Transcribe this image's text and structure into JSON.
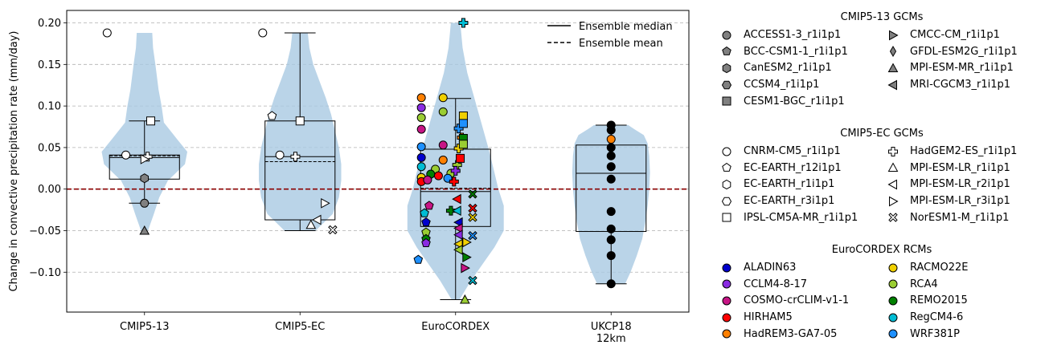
{
  "chart_data": {
    "type": "violin-box-scatter",
    "ylabel": "Change in convective precipitation rate (mm/day)",
    "xlabel": "",
    "ylim": [
      -0.148,
      0.215
    ],
    "yticks": [
      -0.1,
      -0.05,
      0.0,
      0.05,
      0.1,
      0.15,
      0.2
    ],
    "ytick_labels": [
      "−0.10",
      "−0.05",
      "0.00",
      "0.05",
      "0.10",
      "0.15",
      "0.20"
    ],
    "grid": "horizontal dashed",
    "zero_line_color": "#8b0000",
    "violin_color": "#a9c9e2",
    "groups": [
      {
        "name": "CMIP5-13",
        "tick_label": [
          "CMIP5-13"
        ],
        "pos": 1,
        "violin": {
          "min": -0.05,
          "max": 0.188,
          "shape": [
            [
              -0.05,
              0.045
            ],
            [
              -0.03,
              0.12
            ],
            [
              -0.01,
              0.19
            ],
            [
              0.01,
              0.3
            ],
            [
              0.03,
              0.52
            ],
            [
              0.045,
              0.55
            ],
            [
              0.06,
              0.42
            ],
            [
              0.08,
              0.25
            ],
            [
              0.1,
              0.22
            ],
            [
              0.12,
              0.18
            ],
            [
              0.15,
              0.14
            ],
            [
              0.17,
              0.11
            ],
            [
              0.188,
              0.1
            ]
          ]
        },
        "box": {
          "q1": 0.012,
          "median": 0.038,
          "mean": 0.04,
          "q3": 0.041,
          "whislo": -0.017,
          "whishi": 0.082
        }
      },
      {
        "name": "CMIP5-EC",
        "tick_label": [
          "CMIP5-EC"
        ],
        "pos": 2,
        "violin": {
          "min": -0.05,
          "max": 0.188,
          "shape": [
            [
              -0.05,
              0.2
            ],
            [
              -0.03,
              0.42
            ],
            [
              -0.01,
              0.5
            ],
            [
              0.01,
              0.53
            ],
            [
              0.03,
              0.53
            ],
            [
              0.05,
              0.5
            ],
            [
              0.07,
              0.45
            ],
            [
              0.09,
              0.4
            ],
            [
              0.11,
              0.33
            ],
            [
              0.13,
              0.25
            ],
            [
              0.15,
              0.17
            ],
            [
              0.17,
              0.12
            ],
            [
              0.188,
              0.1
            ]
          ]
        },
        "box": {
          "q1": -0.037,
          "median": 0.039,
          "mean": 0.033,
          "q3": 0.082,
          "whislo": -0.05,
          "whishi": 0.188
        }
      },
      {
        "name": "EuroCORDEX",
        "tick_label": [
          "EuroCORDEX"
        ],
        "pos": 3,
        "violin": {
          "min": -0.133,
          "max": 0.2,
          "shape": [
            [
              -0.133,
              0.05
            ],
            [
              -0.11,
              0.2
            ],
            [
              -0.09,
              0.35
            ],
            [
              -0.07,
              0.5
            ],
            [
              -0.05,
              0.62
            ],
            [
              -0.02,
              0.62
            ],
            [
              0.0,
              0.55
            ],
            [
              0.02,
              0.5
            ],
            [
              0.05,
              0.42
            ],
            [
              0.08,
              0.33
            ],
            [
              0.11,
              0.24
            ],
            [
              0.14,
              0.15
            ],
            [
              0.17,
              0.09
            ],
            [
              0.2,
              0.06
            ]
          ]
        },
        "box": {
          "q1": -0.045,
          "median": -0.003,
          "mean": 0.001,
          "q3": 0.048,
          "whislo": -0.133,
          "whishi": 0.109
        }
      },
      {
        "name": "UKCP18 12km",
        "tick_label": [
          "UKCP18",
          "12km"
        ],
        "pos": 4,
        "violin": {
          "min": -0.114,
          "max": 0.077,
          "shape": [
            [
              -0.114,
              0.18
            ],
            [
              -0.1,
              0.25
            ],
            [
              -0.08,
              0.33
            ],
            [
              -0.06,
              0.4
            ],
            [
              -0.04,
              0.44
            ],
            [
              -0.02,
              0.47
            ],
            [
              0.0,
              0.49
            ],
            [
              0.02,
              0.5
            ],
            [
              0.04,
              0.49
            ],
            [
              0.055,
              0.47
            ],
            [
              0.065,
              0.42
            ],
            [
              0.072,
              0.3
            ],
            [
              0.077,
              0.22
            ]
          ]
        },
        "box": {
          "q1": -0.051,
          "median": 0.019,
          "mean": 0.019,
          "q3": 0.053,
          "whislo": -0.114,
          "whishi": 0.077
        }
      }
    ],
    "points": [
      {
        "g": 1,
        "dx": -0.24,
        "y": 0.188,
        "m": "o",
        "c": "#ffffff"
      },
      {
        "g": 1,
        "dx": 0.04,
        "y": 0.082,
        "m": "s",
        "c": "#ffffff"
      },
      {
        "g": 1,
        "dx": -0.12,
        "y": 0.041,
        "m": "o",
        "c": "#ffffff"
      },
      {
        "g": 1,
        "dx": 0.02,
        "y": 0.039,
        "m": "P",
        "c": "#ffffff"
      },
      {
        "g": 1,
        "dx": 0.0,
        "y": 0.036,
        "m": ">",
        "c": "#ffffff"
      },
      {
        "g": 1,
        "dx": 0.0,
        "y": 0.013,
        "m": "h",
        "c": "#808080"
      },
      {
        "g": 1,
        "dx": 0.0,
        "y": -0.017,
        "m": "o",
        "c": "#808080"
      },
      {
        "g": 1,
        "dx": 0.0,
        "y": -0.05,
        "m": "^",
        "c": "#808080"
      },
      {
        "g": 2,
        "dx": -0.24,
        "y": 0.188,
        "m": "o",
        "c": "#ffffff"
      },
      {
        "g": 2,
        "dx": 0.0,
        "y": 0.082,
        "m": "s",
        "c": "#ffffff"
      },
      {
        "g": 2,
        "dx": -0.18,
        "y": 0.088,
        "m": "p",
        "c": "#ffffff"
      },
      {
        "g": 2,
        "dx": -0.13,
        "y": 0.041,
        "m": "o",
        "c": "#ffffff"
      },
      {
        "g": 2,
        "dx": -0.03,
        "y": 0.039,
        "m": "P",
        "c": "#ffffff"
      },
      {
        "g": 2,
        "dx": 0.16,
        "y": -0.017,
        "m": ">",
        "c": "#ffffff"
      },
      {
        "g": 2,
        "dx": 0.11,
        "y": -0.037,
        "m": "<",
        "c": "#ffffff"
      },
      {
        "g": 2,
        "dx": 0.07,
        "y": -0.043,
        "m": "^",
        "c": "#ffffff"
      },
      {
        "g": 2,
        "dx": 0.21,
        "y": -0.049,
        "m": "X",
        "c": "#ffffff"
      },
      {
        "g": 3,
        "dx": -0.22,
        "y": 0.11,
        "m": "o",
        "c": "#ff8000"
      },
      {
        "g": 3,
        "dx": -0.08,
        "y": 0.11,
        "m": "o",
        "c": "#f0d000"
      },
      {
        "g": 3,
        "dx": -0.22,
        "y": 0.098,
        "m": "o",
        "c": "#8a2be2"
      },
      {
        "g": 3,
        "dx": -0.08,
        "y": 0.093,
        "m": "o",
        "c": "#9acd32"
      },
      {
        "g": 3,
        "dx": -0.22,
        "y": 0.086,
        "m": "o",
        "c": "#9acd32"
      },
      {
        "g": 3,
        "dx": -0.22,
        "y": 0.072,
        "m": "o",
        "c": "#c71585"
      },
      {
        "g": 3,
        "dx": -0.22,
        "y": 0.051,
        "m": "o",
        "c": "#1e90ff"
      },
      {
        "g": 3,
        "dx": -0.08,
        "y": 0.053,
        "m": "o",
        "c": "#c71585"
      },
      {
        "g": 3,
        "dx": -0.22,
        "y": 0.038,
        "m": "o",
        "c": "#0000cd"
      },
      {
        "g": 3,
        "dx": -0.08,
        "y": 0.035,
        "m": "o",
        "c": "#ff8000"
      },
      {
        "g": 3,
        "dx": -0.22,
        "y": 0.027,
        "m": "o",
        "c": "#00bcd4"
      },
      {
        "g": 3,
        "dx": -0.13,
        "y": 0.024,
        "m": "o",
        "c": "#9acd32"
      },
      {
        "g": 3,
        "dx": -0.22,
        "y": 0.014,
        "m": "o",
        "c": "#f0d000"
      },
      {
        "g": 3,
        "dx": -0.16,
        "y": 0.018,
        "m": "o",
        "c": "#008000"
      },
      {
        "g": 3,
        "dx": -0.22,
        "y": 0.009,
        "m": "o",
        "c": "#ff0000"
      },
      {
        "g": 3,
        "dx": -0.18,
        "y": 0.011,
        "m": "o",
        "c": "#c71585"
      },
      {
        "g": 3,
        "dx": -0.11,
        "y": 0.016,
        "m": "o",
        "c": "#ff0000"
      },
      {
        "g": 3,
        "dx": -0.03,
        "y": 0.019,
        "m": "o",
        "c": "#9acd32"
      },
      {
        "g": 3,
        "dx": -0.05,
        "y": 0.013,
        "m": "o",
        "c": "#1e90ff"
      },
      {
        "g": 3,
        "dx": -0.17,
        "y": -0.02,
        "m": "p",
        "c": "#c71585"
      },
      {
        "g": 3,
        "dx": -0.2,
        "y": -0.029,
        "m": "p",
        "c": "#00bcd4"
      },
      {
        "g": 3,
        "dx": -0.19,
        "y": -0.04,
        "m": "p",
        "c": "#0000cd"
      },
      {
        "g": 3,
        "dx": -0.19,
        "y": -0.052,
        "m": "p",
        "c": "#9acd32"
      },
      {
        "g": 3,
        "dx": -0.19,
        "y": -0.06,
        "m": "p",
        "c": "#008000"
      },
      {
        "g": 3,
        "dx": -0.19,
        "y": -0.065,
        "m": "p",
        "c": "#8a2be2"
      },
      {
        "g": 3,
        "dx": -0.24,
        "y": -0.085,
        "m": "p",
        "c": "#1e90ff"
      },
      {
        "g": 3,
        "dx": 0.05,
        "y": 0.2,
        "m": "P",
        "c": "#00bcd4"
      },
      {
        "g": 3,
        "dx": 0.02,
        "y": 0.073,
        "m": "P",
        "c": "#1e90ff"
      },
      {
        "g": 3,
        "dx": 0.04,
        "y": 0.062,
        "m": "P",
        "c": "#ff8000"
      },
      {
        "g": 3,
        "dx": 0.02,
        "y": 0.049,
        "m": "P",
        "c": "#f0d000"
      },
      {
        "g": 3,
        "dx": 0.01,
        "y": 0.029,
        "m": "P",
        "c": "#9acd32"
      },
      {
        "g": 3,
        "dx": 0.0,
        "y": 0.022,
        "m": "P",
        "c": "#8a2be2"
      },
      {
        "g": 3,
        "dx": -0.01,
        "y": 0.009,
        "m": "P",
        "c": "#ff0000"
      },
      {
        "g": 3,
        "dx": -0.03,
        "y": -0.026,
        "m": "P",
        "c": "#008000"
      },
      {
        "g": 3,
        "dx": 0.05,
        "y": 0.088,
        "m": "s",
        "c": "#f0d000"
      },
      {
        "g": 3,
        "dx": 0.05,
        "y": 0.079,
        "m": "s",
        "c": "#1e90ff"
      },
      {
        "g": 3,
        "dx": 0.05,
        "y": 0.061,
        "m": "s",
        "c": "#008000"
      },
      {
        "g": 3,
        "dx": 0.05,
        "y": 0.054,
        "m": "s",
        "c": "#9acd32"
      },
      {
        "g": 3,
        "dx": 0.03,
        "y": 0.037,
        "m": "s",
        "c": "#ff0000"
      },
      {
        "g": 3,
        "dx": 0.01,
        "y": -0.012,
        "m": "<",
        "c": "#ff0000"
      },
      {
        "g": 3,
        "dx": 0.01,
        "y": -0.026,
        "m": "<",
        "c": "#00bcd4"
      },
      {
        "g": 3,
        "dx": 0.02,
        "y": -0.04,
        "m": "<",
        "c": "#0000cd"
      },
      {
        "g": 3,
        "dx": 0.02,
        "y": -0.047,
        "m": "<",
        "c": "#c71585"
      },
      {
        "g": 3,
        "dx": 0.02,
        "y": -0.055,
        "m": "<",
        "c": "#8a2be2"
      },
      {
        "g": 3,
        "dx": 0.02,
        "y": -0.066,
        "m": "<",
        "c": "#f0d000"
      },
      {
        "g": 3,
        "dx": 0.02,
        "y": -0.073,
        "m": "<",
        "c": "#9acd32"
      },
      {
        "g": 3,
        "dx": 0.07,
        "y": -0.064,
        "m": ">",
        "c": "#f0d000"
      },
      {
        "g": 3,
        "dx": 0.07,
        "y": -0.082,
        "m": ">",
        "c": "#008000"
      },
      {
        "g": 3,
        "dx": 0.06,
        "y": -0.095,
        "m": ">",
        "c": "#c71585"
      },
      {
        "g": 3,
        "dx": 0.06,
        "y": -0.133,
        "m": "^",
        "c": "#9acd32"
      },
      {
        "g": 3,
        "dx": 0.11,
        "y": -0.006,
        "m": "X",
        "c": "#008000"
      },
      {
        "g": 3,
        "dx": 0.11,
        "y": -0.023,
        "m": "X",
        "c": "#ff0000"
      },
      {
        "g": 3,
        "dx": 0.11,
        "y": -0.034,
        "m": "X",
        "c": "#f0d000"
      },
      {
        "g": 3,
        "dx": 0.11,
        "y": -0.056,
        "m": "X",
        "c": "#1e90ff"
      },
      {
        "g": 3,
        "dx": 0.11,
        "y": -0.11,
        "m": "X",
        "c": "#00bcd4"
      },
      {
        "g": 4,
        "dx": 0.0,
        "y": 0.077,
        "m": "o",
        "c": "#000000"
      },
      {
        "g": 4,
        "dx": 0.0,
        "y": 0.071,
        "m": "o",
        "c": "#000000"
      },
      {
        "g": 4,
        "dx": 0.0,
        "y": 0.06,
        "m": "o",
        "c": "#ff8000"
      },
      {
        "g": 4,
        "dx": 0.0,
        "y": 0.05,
        "m": "o",
        "c": "#000000"
      },
      {
        "g": 4,
        "dx": 0.0,
        "y": 0.04,
        "m": "o",
        "c": "#000000"
      },
      {
        "g": 4,
        "dx": 0.0,
        "y": 0.027,
        "m": "o",
        "c": "#000000"
      },
      {
        "g": 4,
        "dx": 0.0,
        "y": 0.012,
        "m": "o",
        "c": "#000000"
      },
      {
        "g": 4,
        "dx": 0.0,
        "y": -0.027,
        "m": "o",
        "c": "#000000"
      },
      {
        "g": 4,
        "dx": 0.0,
        "y": -0.048,
        "m": "o",
        "c": "#000000"
      },
      {
        "g": 4,
        "dx": 0.0,
        "y": -0.061,
        "m": "o",
        "c": "#000000"
      },
      {
        "g": 4,
        "dx": 0.0,
        "y": -0.08,
        "m": "o",
        "c": "#000000"
      },
      {
        "g": 4,
        "dx": 0.0,
        "y": -0.114,
        "m": "o",
        "c": "#000000"
      }
    ],
    "inner_legend": [
      {
        "label": "Ensemble median",
        "style": "solid"
      },
      {
        "label": "Ensemble mean",
        "style": "dashed"
      }
    ],
    "legends": [
      {
        "title": "CMIP5-13 GCMs",
        "items": [
          {
            "label": "ACCESS1-3_r1i1p1",
            "m": "o",
            "c": "#808080"
          },
          {
            "label": "BCC-CSM1-1_r1i1p1",
            "m": "p",
            "c": "#808080"
          },
          {
            "label": "CanESM2_r1i1p1",
            "m": "h",
            "c": "#808080"
          },
          {
            "label": "CCSM4_r1i1p1",
            "m": "H",
            "c": "#808080"
          },
          {
            "label": "CESM1-BGC_r1i1p1",
            "m": "s",
            "c": "#808080"
          },
          {
            "label": "CMCC-CM_r1i1p1",
            "m": ">",
            "c": "#808080"
          },
          {
            "label": "GFDL-ESM2G_r1i1p1",
            "m": "d",
            "c": "#808080"
          },
          {
            "label": "MPI-ESM-MR_r1i1p1",
            "m": "^",
            "c": "#808080"
          },
          {
            "label": "MRI-CGCM3_r1i1p1",
            "m": "<",
            "c": "#808080"
          }
        ]
      },
      {
        "title": "CMIP5-EC GCMs",
        "items": [
          {
            "label": "CNRM-CM5_r1i1p1",
            "m": "o",
            "c": "#ffffff"
          },
          {
            "label": "EC-EARTH_r12i1p1",
            "m": "p",
            "c": "#ffffff"
          },
          {
            "label": "EC-EARTH_r1i1p1",
            "m": "h",
            "c": "#ffffff"
          },
          {
            "label": "EC-EARTH_r3i1p1",
            "m": "H",
            "c": "#ffffff"
          },
          {
            "label": "IPSL-CM5A-MR_r1i1p1",
            "m": "s",
            "c": "#ffffff"
          },
          {
            "label": "HadGEM2-ES_r1i1p1",
            "m": "P",
            "c": "#ffffff"
          },
          {
            "label": "MPI-ESM-LR_r1i1p1",
            "m": "^",
            "c": "#ffffff"
          },
          {
            "label": "MPI-ESM-LR_r2i1p1",
            "m": "<",
            "c": "#ffffff"
          },
          {
            "label": "MPI-ESM-LR_r3i1p1",
            "m": ">",
            "c": "#ffffff"
          },
          {
            "label": "NorESM1-M_r1i1p1",
            "m": "X",
            "c": "#ffffff"
          }
        ]
      },
      {
        "title": "EuroCORDEX RCMs",
        "items": [
          {
            "label": "ALADIN63",
            "m": "o",
            "c": "#0000cd"
          },
          {
            "label": "CCLM4-8-17",
            "m": "o",
            "c": "#8a2be2"
          },
          {
            "label": "COSMO-crCLIM-v1-1",
            "m": "o",
            "c": "#c71585"
          },
          {
            "label": "HIRHAM5",
            "m": "o",
            "c": "#ff0000"
          },
          {
            "label": "HadREM3-GA7-05",
            "m": "o",
            "c": "#ff8000"
          },
          {
            "label": "RACMO22E",
            "m": "o",
            "c": "#f0d000"
          },
          {
            "label": "RCA4",
            "m": "o",
            "c": "#9acd32"
          },
          {
            "label": "REMO2015",
            "m": "o",
            "c": "#008000"
          },
          {
            "label": "RegCM4-6",
            "m": "o",
            "c": "#00bcd4"
          },
          {
            "label": "WRF381P",
            "m": "o",
            "c": "#1e90ff"
          }
        ]
      }
    ]
  }
}
